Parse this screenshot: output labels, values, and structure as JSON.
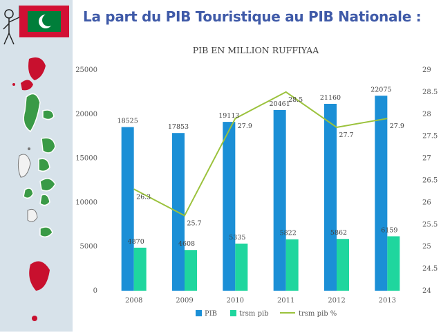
{
  "slide": {
    "title": "La part du PIB Touristique au PIB Nationale :"
  },
  "colors": {
    "pib": "#1b8fd6",
    "trsm_pib": "#1fd69e",
    "trsm_pct": "#9bc23c",
    "title": "#3f5aa8",
    "flag_red": "#d21034",
    "flag_green": "#007e3a"
  },
  "chart_data": {
    "type": "bar",
    "title": "PIB EN MILLION RUFFIYAA",
    "categories": [
      "2008",
      "2009",
      "2010",
      "2011",
      "2012",
      "2013"
    ],
    "series": [
      {
        "name": "PIB",
        "type": "bar",
        "axis": "left",
        "values": [
          18525,
          17853,
          19113,
          20461,
          21160,
          22075
        ]
      },
      {
        "name": "trsm pib",
        "type": "bar",
        "axis": "left",
        "values": [
          4870,
          4608,
          5335,
          5822,
          5862,
          6159
        ]
      },
      {
        "name": "trsm pib %",
        "type": "line",
        "axis": "right",
        "values": [
          26.3,
          25.7,
          27.9,
          28.5,
          27.7,
          27.9
        ]
      }
    ],
    "y_left": {
      "min": 0,
      "max": 25000,
      "ticks": [
        "0",
        "5000",
        "10000",
        "15000",
        "20000",
        "25000"
      ]
    },
    "y_right": {
      "min": 24,
      "max": 29,
      "ticks": [
        "24",
        "24.5",
        "25",
        "25.5",
        "26",
        "26.5",
        "27",
        "27.5",
        "28",
        "28.5",
        "29"
      ]
    },
    "grid": false,
    "legend_position": "bottom"
  }
}
